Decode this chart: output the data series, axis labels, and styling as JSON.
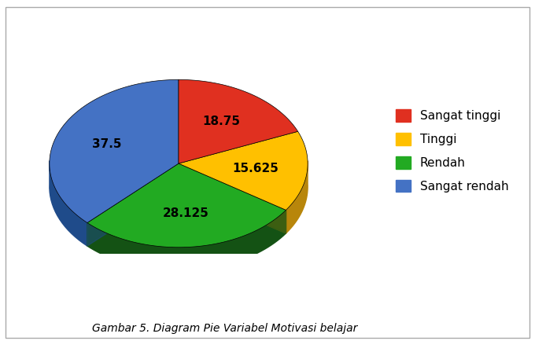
{
  "labels": [
    "Sangat tinggi",
    "Tinggi",
    "Rendah",
    "Sangat rendah"
  ],
  "values": [
    18.75,
    15.625,
    28.125,
    37.5
  ],
  "colors_top": [
    "#E03020",
    "#FFC000",
    "#22AA22",
    "#4472C4"
  ],
  "colors_side": [
    "#8B1A0A",
    "#B8860B",
    "#145214",
    "#1F4B8A"
  ],
  "startangle": 90,
  "title": "Gambar 5. Diagram Pie Variabel Motivasi belajar",
  "title_fontsize": 10,
  "label_fontsize": 11,
  "legend_fontsize": 11,
  "background_color": "#FFFFFF",
  "pct_labels": [
    "18.75",
    "15.625",
    "28.125",
    "37.5"
  ],
  "legend_labels": [
    "Sangat tinggi",
    "Tinggi",
    "Rendah",
    "Sangat rendah"
  ]
}
